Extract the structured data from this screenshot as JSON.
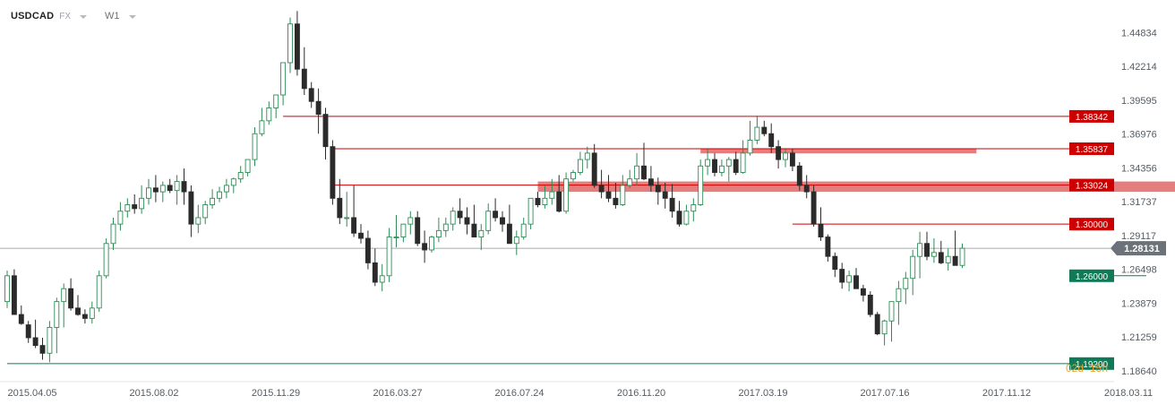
{
  "toolbar": {
    "symbol": "USDCAD",
    "market": "FX",
    "interval": "W1"
  },
  "countdown": {
    "days": "02d",
    "hours": "15h"
  },
  "colors": {
    "bull_fill": "#ffffff",
    "bull_border": "#2e8b57",
    "bear_fill": "#2b2b2b",
    "resistance": "#cc0000",
    "resistance_zone": "#e06666",
    "support": "#0f7a55",
    "current": "#6b7279",
    "countdown": "#f0a030"
  },
  "chart_data": {
    "type": "candlestick",
    "title": "",
    "ylim": [
      1.178,
      1.468
    ],
    "y_ticks": [
      "1.44834",
      "1.42214",
      "1.39595",
      "1.36976",
      "1.34356",
      "1.31737",
      "1.29117",
      "1.26498",
      "1.23879",
      "1.21259",
      "1.18640"
    ],
    "x_ticks": [
      "2015.04.05",
      "2015.08.02",
      "2015.11.29",
      "2016.03.27",
      "2016.07.24",
      "2016.11.20",
      "2017.03.19",
      "2017.07.16",
      "2017.11.12",
      "2018.03.11"
    ],
    "current_price": {
      "value": 1.28131,
      "label": "1.28131"
    },
    "levels": [
      {
        "value": 1.38342,
        "label": "1.38342",
        "kind": "resistance",
        "from_bar": 39
      },
      {
        "value": 1.35837,
        "label": "1.35837",
        "kind": "resistance",
        "from_bar": 46
      },
      {
        "value": 1.33024,
        "label": "1.33024",
        "kind": "resistance",
        "from_bar": 46
      },
      {
        "value": 1.3,
        "label": "1.30000",
        "kind": "resistance",
        "from_bar": 111
      },
      {
        "value": 1.26,
        "label": "1.26000",
        "kind": "support",
        "from_bar": 161
      },
      {
        "value": 1.192,
        "label": "1.19200",
        "kind": "support",
        "from_bar": 0
      }
    ],
    "zones": [
      {
        "from_bar": 75,
        "to_bar": 169,
        "low": 1.325,
        "high": 1.333
      },
      {
        "from_bar": 98,
        "to_bar": 137,
        "low": 1.3548,
        "high": 1.3584
      }
    ],
    "candles_open": [
      1.24,
      1.26,
      1.23,
      1.222,
      1.212,
      1.206,
      1.2,
      1.22,
      1.24,
      1.25,
      1.235,
      1.23,
      1.227,
      1.235,
      1.26,
      1.285,
      1.3,
      1.31,
      1.315,
      1.312,
      1.32,
      1.328,
      1.325,
      1.33,
      1.326,
      1.333,
      1.325,
      1.3,
      1.305,
      1.315,
      1.32,
      1.325,
      1.33,
      1.335,
      1.34,
      1.35,
      1.37,
      1.38,
      1.39,
      1.4,
      1.425,
      1.455,
      1.42,
      1.405,
      1.395,
      1.385,
      1.36,
      1.32,
      1.305,
      1.305,
      1.293,
      1.289,
      1.27,
      1.255,
      1.26,
      1.29,
      1.29,
      1.3,
      1.305,
      1.285,
      1.28,
      1.29,
      1.295,
      1.3,
      1.31,
      1.305,
      1.3,
      1.29,
      1.295,
      1.31,
      1.305,
      1.3,
      1.285,
      1.29,
      1.3,
      1.32,
      1.315,
      1.32,
      1.325,
      1.31,
      1.335,
      1.34,
      1.35,
      1.355,
      1.33,
      1.325,
      1.32,
      1.315,
      1.33,
      1.335,
      1.345,
      1.335,
      1.33,
      1.325,
      1.32,
      1.31,
      1.3,
      1.31,
      1.315,
      1.345,
      1.35,
      1.34,
      1.345,
      1.35,
      1.34,
      1.355,
      1.365,
      1.375,
      1.37,
      1.36,
      1.35,
      1.355,
      1.345,
      1.33,
      1.325,
      1.3,
      1.29,
      1.275,
      1.265,
      1.255,
      1.26,
      1.25,
      1.245,
      1.23,
      1.215,
      1.225,
      1.24,
      1.25,
      1.258,
      1.275,
      1.285,
      1.275,
      1.278,
      1.27,
      1.275,
      1.268
    ],
    "candles_high": [
      1.264,
      1.265,
      1.237,
      1.225,
      1.226,
      1.212,
      1.225,
      1.243,
      1.254,
      1.258,
      1.245,
      1.234,
      1.24,
      1.264,
      1.289,
      1.305,
      1.317,
      1.32,
      1.323,
      1.33,
      1.335,
      1.338,
      1.333,
      1.335,
      1.338,
      1.343,
      1.33,
      1.315,
      1.318,
      1.327,
      1.329,
      1.335,
      1.336,
      1.345,
      1.35,
      1.375,
      1.39,
      1.395,
      1.395,
      1.425,
      1.46,
      1.465,
      1.437,
      1.41,
      1.405,
      1.39,
      1.365,
      1.335,
      1.325,
      1.33,
      1.3,
      1.295,
      1.281,
      1.269,
      1.297,
      1.307,
      1.3,
      1.31,
      1.31,
      1.295,
      1.291,
      1.305,
      1.305,
      1.313,
      1.32,
      1.313,
      1.315,
      1.3,
      1.316,
      1.32,
      1.31,
      1.315,
      1.295,
      1.305,
      1.32,
      1.325,
      1.33,
      1.335,
      1.338,
      1.34,
      1.342,
      1.356,
      1.36,
      1.362,
      1.342,
      1.338,
      1.332,
      1.338,
      1.342,
      1.355,
      1.363,
      1.345,
      1.336,
      1.332,
      1.331,
      1.318,
      1.315,
      1.32,
      1.35,
      1.358,
      1.355,
      1.35,
      1.352,
      1.356,
      1.365,
      1.38,
      1.384,
      1.38,
      1.378,
      1.365,
      1.358,
      1.358,
      1.348,
      1.338,
      1.33,
      1.313,
      1.292,
      1.278,
      1.27,
      1.264,
      1.266,
      1.253,
      1.248,
      1.232,
      1.226,
      1.24,
      1.256,
      1.263,
      1.28,
      1.294,
      1.294,
      1.289,
      1.287,
      1.281,
      1.295,
      1.285
    ],
    "candles_low": [
      1.235,
      1.23,
      1.222,
      1.208,
      1.204,
      1.195,
      1.193,
      1.2,
      1.22,
      1.233,
      1.229,
      1.223,
      1.223,
      1.232,
      1.258,
      1.28,
      1.295,
      1.305,
      1.308,
      1.308,
      1.315,
      1.317,
      1.317,
      1.324,
      1.315,
      1.315,
      1.29,
      1.293,
      1.3,
      1.312,
      1.317,
      1.32,
      1.324,
      1.332,
      1.337,
      1.345,
      1.368,
      1.377,
      1.382,
      1.392,
      1.417,
      1.415,
      1.4,
      1.39,
      1.37,
      1.35,
      1.315,
      1.3,
      1.298,
      1.29,
      1.285,
      1.265,
      1.252,
      1.248,
      1.255,
      1.282,
      1.286,
      1.292,
      1.283,
      1.27,
      1.278,
      1.286,
      1.29,
      1.295,
      1.3,
      1.292,
      1.29,
      1.28,
      1.292,
      1.302,
      1.294,
      1.285,
      1.276,
      1.288,
      1.296,
      1.313,
      1.312,
      1.315,
      1.309,
      1.308,
      1.333,
      1.338,
      1.343,
      1.328,
      1.32,
      1.317,
      1.312,
      1.314,
      1.328,
      1.33,
      1.334,
      1.325,
      1.315,
      1.312,
      1.305,
      1.298,
      1.299,
      1.302,
      1.314,
      1.338,
      1.337,
      1.337,
      1.333,
      1.338,
      1.339,
      1.353,
      1.362,
      1.368,
      1.355,
      1.343,
      1.344,
      1.341,
      1.326,
      1.32,
      1.298,
      1.287,
      1.271,
      1.259,
      1.25,
      1.248,
      1.25,
      1.24,
      1.228,
      1.214,
      1.206,
      1.209,
      1.222,
      1.238,
      1.245,
      1.258,
      1.272,
      1.27,
      1.269,
      1.264,
      1.269,
      1.266
    ],
    "candles_close": [
      1.26,
      1.23,
      1.223,
      1.212,
      1.206,
      1.2,
      1.22,
      1.24,
      1.25,
      1.235,
      1.23,
      1.227,
      1.235,
      1.26,
      1.285,
      1.3,
      1.31,
      1.315,
      1.312,
      1.32,
      1.328,
      1.325,
      1.33,
      1.326,
      1.333,
      1.325,
      1.3,
      1.305,
      1.315,
      1.32,
      1.325,
      1.33,
      1.335,
      1.34,
      1.35,
      1.37,
      1.38,
      1.39,
      1.4,
      1.425,
      1.455,
      1.42,
      1.405,
      1.395,
      1.385,
      1.36,
      1.32,
      1.305,
      1.305,
      1.293,
      1.289,
      1.27,
      1.255,
      1.26,
      1.29,
      1.29,
      1.3,
      1.305,
      1.285,
      1.28,
      1.29,
      1.295,
      1.3,
      1.31,
      1.305,
      1.3,
      1.29,
      1.295,
      1.31,
      1.305,
      1.3,
      1.285,
      1.29,
      1.3,
      1.32,
      1.315,
      1.32,
      1.325,
      1.31,
      1.335,
      1.34,
      1.35,
      1.355,
      1.33,
      1.325,
      1.32,
      1.315,
      1.33,
      1.335,
      1.345,
      1.335,
      1.33,
      1.325,
      1.32,
      1.31,
      1.3,
      1.31,
      1.315,
      1.345,
      1.35,
      1.34,
      1.345,
      1.35,
      1.34,
      1.355,
      1.365,
      1.375,
      1.37,
      1.36,
      1.35,
      1.355,
      1.345,
      1.33,
      1.325,
      1.3,
      1.29,
      1.275,
      1.265,
      1.255,
      1.26,
      1.25,
      1.245,
      1.23,
      1.215,
      1.225,
      1.24,
      1.25,
      1.258,
      1.275,
      1.285,
      1.275,
      1.278,
      1.27,
      1.275,
      1.268,
      1.2813
    ]
  }
}
